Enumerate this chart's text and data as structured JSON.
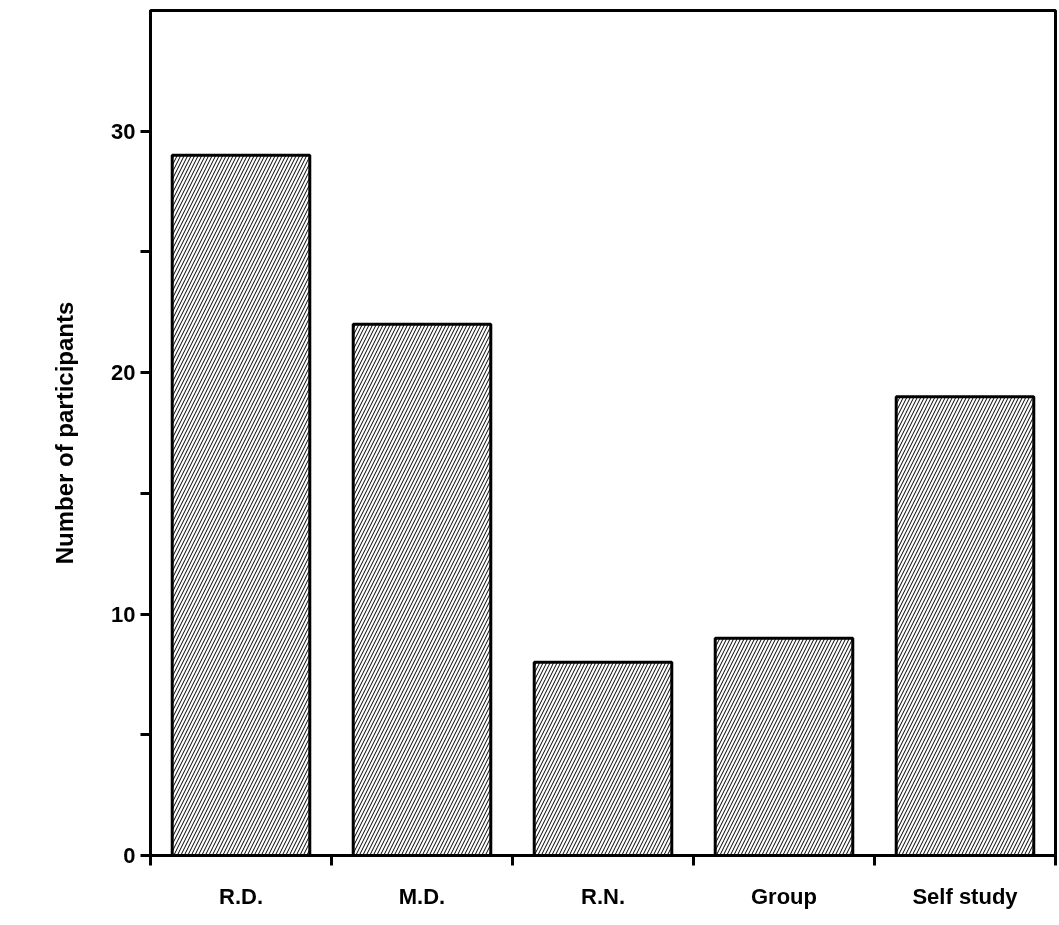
{
  "chart_data": {
    "type": "bar",
    "ylabel": "Number of participants",
    "categories": [
      "R.D.",
      "M.D.",
      "R.N.",
      "Group",
      "Self study"
    ],
    "values": [
      29,
      22,
      8,
      9,
      19
    ],
    "color": "#000000",
    "ylim": [
      0,
      35
    ],
    "yticks": [
      0,
      {
        "value": 5,
        "label": null
      },
      10,
      {
        "value": 15,
        "label": null
      },
      20,
      {
        "value": 25,
        "label": null
      },
      30
    ],
    "grid": false
  }
}
